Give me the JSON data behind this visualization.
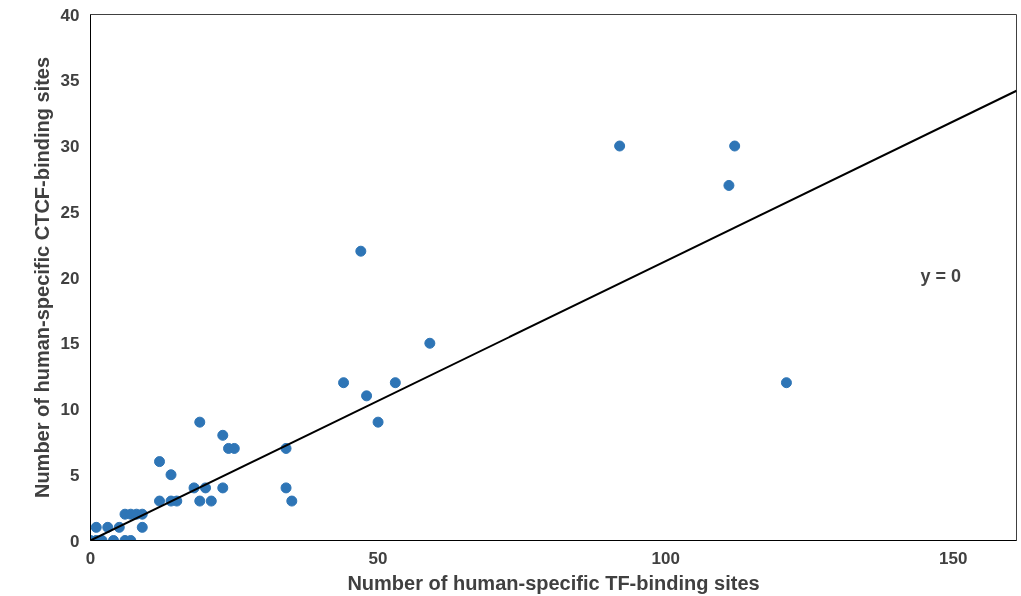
{
  "chart_data": {
    "type": "scatter",
    "xlabel": "Number of human-specific TF-binding sites",
    "ylabel": "Number of human-specific CTCF-binding sites",
    "xlim": [
      0,
      161
    ],
    "ylim": [
      0,
      40
    ],
    "xticks": [
      0,
      50,
      100,
      150
    ],
    "yticks": [
      0,
      5,
      10,
      15,
      20,
      25,
      30,
      35,
      40
    ],
    "grid": false,
    "annotations": [
      "y = 0"
    ],
    "series": [
      {
        "color": "#2e75b6",
        "marker": "circle",
        "x": [
          0,
          1,
          1,
          2,
          3,
          4,
          5,
          6,
          7,
          6,
          7,
          8,
          9,
          9,
          12,
          12,
          14,
          14,
          15,
          19,
          18,
          19,
          20,
          21,
          23,
          23,
          24,
          25,
          34,
          34,
          35,
          44,
          47,
          48,
          50,
          53,
          59,
          92,
          111,
          112,
          121
        ],
        "values": [
          0,
          0,
          1,
          0,
          1,
          0,
          1,
          0,
          0,
          2,
          2,
          2,
          2,
          1,
          6,
          3,
          5,
          3,
          3,
          9,
          4,
          3,
          4,
          3,
          8,
          4,
          7,
          7,
          7,
          4,
          3,
          12,
          22,
          11,
          9,
          12,
          15,
          30,
          27,
          30,
          12
        ]
      },
      {
        "type": "line",
        "color": "#000000",
        "x": [
          0,
          161
        ],
        "values": [
          0,
          34.2
        ],
        "line_style": "solid"
      }
    ]
  }
}
